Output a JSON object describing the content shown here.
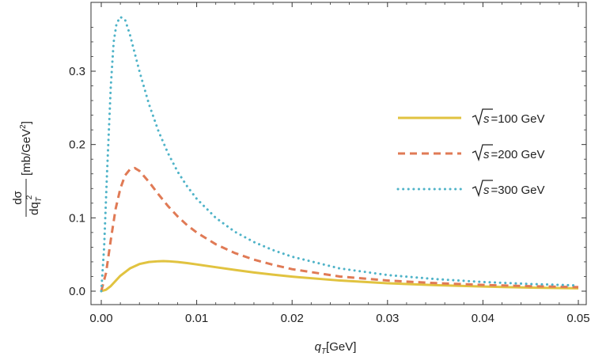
{
  "chart_data": {
    "type": "line",
    "title": "",
    "xlabel": "q_T[GeV]",
    "xlabel_parts": {
      "symbol": "q",
      "subscript": "T",
      "unit": "[GeV]"
    },
    "ylabel_parts": {
      "numerator": "dσ",
      "denominator": "dq",
      "denominator_subscript": "T",
      "denominator_superscript": "2",
      "unit": "[mb/GeV",
      "unit_superscript": "2",
      "unit_close": "]"
    },
    "xlim": [
      0.0,
      0.05
    ],
    "ylim": [
      0.0,
      0.38
    ],
    "x_ticks": [
      0.0,
      0.01,
      0.02,
      0.03,
      0.04,
      0.05
    ],
    "x_tick_labels": [
      "0.00",
      "0.01",
      "0.02",
      "0.03",
      "0.04",
      "0.05"
    ],
    "y_ticks": [
      0.0,
      0.1,
      0.2,
      0.3
    ],
    "y_tick_labels": [
      "0.0",
      "0.1",
      "0.2",
      "0.3"
    ],
    "grid": false,
    "legend_position": "right",
    "series": [
      {
        "name": "√s =100 GeV",
        "legend_sqrt": "√",
        "legend_var": "s",
        "legend_rest": "=100 GeV",
        "color": "#E1C340",
        "style": "solid",
        "x": [
          0.0,
          0.0005,
          0.001,
          0.0015,
          0.002,
          0.003,
          0.004,
          0.005,
          0.006,
          0.0065,
          0.007,
          0.008,
          0.009,
          0.01,
          0.012,
          0.014,
          0.016,
          0.018,
          0.02,
          0.025,
          0.03,
          0.035,
          0.04,
          0.045,
          0.05
        ],
        "y": [
          0.0,
          0.002,
          0.007,
          0.014,
          0.021,
          0.031,
          0.037,
          0.0398,
          0.0408,
          0.041,
          0.0408,
          0.0398,
          0.0383,
          0.0365,
          0.0327,
          0.029,
          0.0255,
          0.0225,
          0.0198,
          0.0145,
          0.0108,
          0.0082,
          0.0063,
          0.0049,
          0.0039
        ]
      },
      {
        "name": "√s =200 GeV",
        "legend_sqrt": "√",
        "legend_var": "s",
        "legend_rest": "=200 GeV",
        "color": "#E07A55",
        "style": "dashed",
        "x": [
          0.0,
          0.0005,
          0.001,
          0.0015,
          0.002,
          0.0025,
          0.003,
          0.0035,
          0.004,
          0.005,
          0.006,
          0.007,
          0.008,
          0.009,
          0.01,
          0.012,
          0.014,
          0.016,
          0.018,
          0.02,
          0.025,
          0.03,
          0.035,
          0.04,
          0.045,
          0.05
        ],
        "y": [
          0.0,
          0.025,
          0.07,
          0.112,
          0.14,
          0.158,
          0.166,
          0.168,
          0.164,
          0.149,
          0.132,
          0.116,
          0.102,
          0.09,
          0.08,
          0.064,
          0.052,
          0.043,
          0.036,
          0.03,
          0.02,
          0.0145,
          0.011,
          0.0085,
          0.0068,
          0.0055
        ]
      },
      {
        "name": "√s =300 GeV",
        "legend_sqrt": "√",
        "legend_var": "s",
        "legend_rest": "=300 GeV",
        "color": "#4FB3C8",
        "style": "dotted",
        "x": [
          0.0,
          0.0003,
          0.0006,
          0.001,
          0.0013,
          0.0016,
          0.002,
          0.0025,
          0.003,
          0.004,
          0.005,
          0.006,
          0.007,
          0.008,
          0.009,
          0.01,
          0.012,
          0.014,
          0.016,
          0.018,
          0.02,
          0.025,
          0.03,
          0.035,
          0.04,
          0.045,
          0.05
        ],
        "y": [
          0.0,
          0.06,
          0.16,
          0.28,
          0.34,
          0.365,
          0.374,
          0.37,
          0.35,
          0.3,
          0.255,
          0.218,
          0.188,
          0.163,
          0.143,
          0.126,
          0.1,
          0.081,
          0.067,
          0.056,
          0.047,
          0.031,
          0.022,
          0.0165,
          0.0125,
          0.0098,
          0.0078
        ]
      }
    ]
  }
}
